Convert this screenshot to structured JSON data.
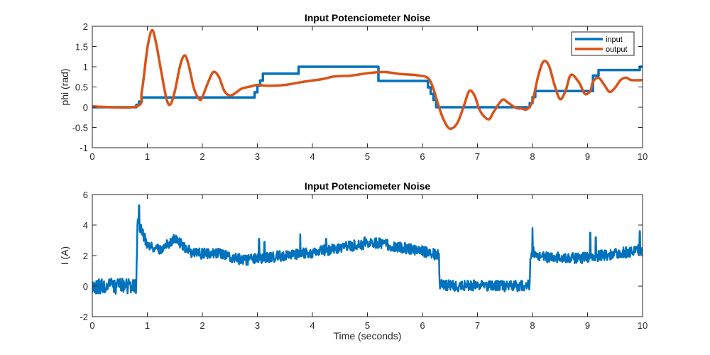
{
  "chart_data": [
    {
      "type": "line",
      "title": "Input Potenciometer Noise",
      "xlabel": "",
      "ylabel": "phi (rad)",
      "xlim": [
        0,
        10
      ],
      "ylim": [
        -1,
        2
      ],
      "xticks": [
        "0",
        "1",
        "2",
        "3",
        "4",
        "5",
        "6",
        "7",
        "8",
        "9",
        "10"
      ],
      "yticks": [
        "-1",
        "-0.5",
        "0",
        "0.5",
        "1",
        "1.5",
        "2"
      ],
      "grid": false,
      "legend_position": "top-right",
      "series": [
        {
          "name": "input",
          "color": "#0072BD",
          "shape": "step",
          "x": [
            0,
            0.8,
            0.8,
            0.85,
            0.85,
            0.9,
            0.9,
            2.95,
            2.95,
            3.0,
            3.0,
            3.05,
            3.05,
            3.1,
            3.1,
            3.75,
            3.75,
            5.2,
            5.2,
            6.1,
            6.1,
            6.15,
            6.15,
            6.2,
            6.2,
            6.25,
            6.25,
            7.95,
            7.95,
            8.0,
            8.0,
            8.05,
            8.05,
            9.1,
            9.1,
            9.2,
            9.2,
            9.95,
            9.95,
            10
          ],
          "y": [
            0,
            0,
            0.06,
            0.06,
            0.14,
            0.14,
            0.24,
            0.24,
            0.37,
            0.37,
            0.53,
            0.53,
            0.66,
            0.66,
            0.83,
            0.83,
            1.0,
            1.0,
            0.65,
            0.65,
            0.49,
            0.49,
            0.33,
            0.33,
            0.18,
            0.18,
            0.0,
            0.0,
            0.1,
            0.1,
            0.25,
            0.25,
            0.4,
            0.4,
            0.78,
            0.78,
            0.92,
            0.92,
            1.0,
            1.0
          ]
        },
        {
          "name": "output",
          "color": "#D95319",
          "x": [
            0,
            0.8,
            0.9,
            1.0,
            1.08,
            1.15,
            1.25,
            1.35,
            1.42,
            1.5,
            1.6,
            1.68,
            1.75,
            1.85,
            1.95,
            2.0,
            2.1,
            2.2,
            2.3,
            2.4,
            2.5,
            2.6,
            2.7,
            2.8,
            2.9,
            3.0,
            3.2,
            3.5,
            3.8,
            4.0,
            4.2,
            4.4,
            4.7,
            5.0,
            5.3,
            5.6,
            5.9,
            6.1,
            6.2,
            6.3,
            6.4,
            6.5,
            6.63,
            6.75,
            6.85,
            6.95,
            7.05,
            7.2,
            7.3,
            7.45,
            7.55,
            7.7,
            7.8,
            7.9,
            8.0,
            8.1,
            8.2,
            8.3,
            8.4,
            8.5,
            8.6,
            8.7,
            8.85,
            8.95,
            9.05,
            9.1,
            9.2,
            9.3,
            9.4,
            9.5,
            9.6,
            9.7,
            9.8,
            10
          ],
          "y": [
            0.02,
            0.02,
            0.4,
            1.45,
            1.9,
            1.65,
            0.9,
            0.2,
            0.07,
            0.4,
            1.05,
            1.28,
            1.05,
            0.45,
            0.19,
            0.25,
            0.6,
            0.87,
            0.75,
            0.4,
            0.29,
            0.35,
            0.45,
            0.49,
            0.52,
            0.55,
            0.53,
            0.55,
            0.62,
            0.66,
            0.7,
            0.76,
            0.78,
            0.84,
            0.87,
            0.82,
            0.79,
            0.72,
            0.45,
            0.0,
            -0.35,
            -0.53,
            -0.4,
            0.02,
            0.4,
            0.28,
            -0.1,
            -0.3,
            -0.1,
            0.18,
            0.12,
            -0.02,
            -0.03,
            -0.05,
            0.15,
            0.75,
            1.13,
            1.02,
            0.55,
            0.2,
            0.4,
            0.8,
            0.6,
            0.33,
            0.4,
            0.63,
            0.73,
            0.56,
            0.38,
            0.48,
            0.67,
            0.73,
            0.67,
            0.67
          ]
        }
      ]
    },
    {
      "type": "line",
      "title": "Input Potenciometer Noise",
      "xlabel": "Time (seconds)",
      "ylabel": "I (A)",
      "xlim": [
        0,
        10
      ],
      "ylim": [
        -2,
        6
      ],
      "xticks": [
        "0",
        "1",
        "2",
        "3",
        "4",
        "5",
        "6",
        "7",
        "8",
        "9",
        "10"
      ],
      "yticks": [
        "-2",
        "0",
        "2",
        "4",
        "6"
      ],
      "grid": false,
      "series": [
        {
          "name": "",
          "color": "#0072BD",
          "noise_amplitude": 0.35,
          "x": [
            0,
            0.8,
            0.81,
            0.82,
            0.9,
            1.0,
            1.2,
            1.4,
            1.5,
            1.6,
            1.8,
            2.0,
            2.2,
            2.4,
            2.6,
            2.8,
            3.0,
            3.5,
            4.0,
            4.5,
            5.0,
            5.2,
            5.5,
            6.0,
            6.3,
            6.31,
            6.32,
            6.6,
            7.0,
            7.5,
            7.95,
            7.96,
            8.0,
            8.1,
            8.3,
            8.5,
            8.8,
            9.0,
            9.5,
            10
          ],
          "y": [
            0,
            0,
            2.0,
            4.1,
            3.6,
            2.7,
            2.4,
            2.8,
            3.1,
            2.8,
            2.2,
            2.1,
            2.2,
            2.1,
            1.8,
            1.7,
            1.8,
            2.0,
            2.2,
            2.5,
            2.8,
            2.8,
            2.6,
            2.3,
            2.0,
            0.6,
            0.1,
            0.0,
            0.05,
            0.0,
            0.05,
            1.8,
            2.3,
            2.0,
            1.9,
            1.9,
            1.8,
            1.9,
            2.1,
            2.4
          ],
          "spikes": [
            {
              "x": 0.85,
              "y": 5.3
            },
            {
              "x": 3.03,
              "y": 3.1
            },
            {
              "x": 3.13,
              "y": 2.9
            },
            {
              "x": 3.78,
              "y": 3.4
            },
            {
              "x": 4.25,
              "y": 3.1
            },
            {
              "x": 4.95,
              "y": 3.2
            },
            {
              "x": 8.0,
              "y": 3.8
            },
            {
              "x": 9.05,
              "y": 3.5
            },
            {
              "x": 9.15,
              "y": 3.2
            },
            {
              "x": 9.95,
              "y": 3.6
            }
          ]
        }
      ]
    }
  ]
}
